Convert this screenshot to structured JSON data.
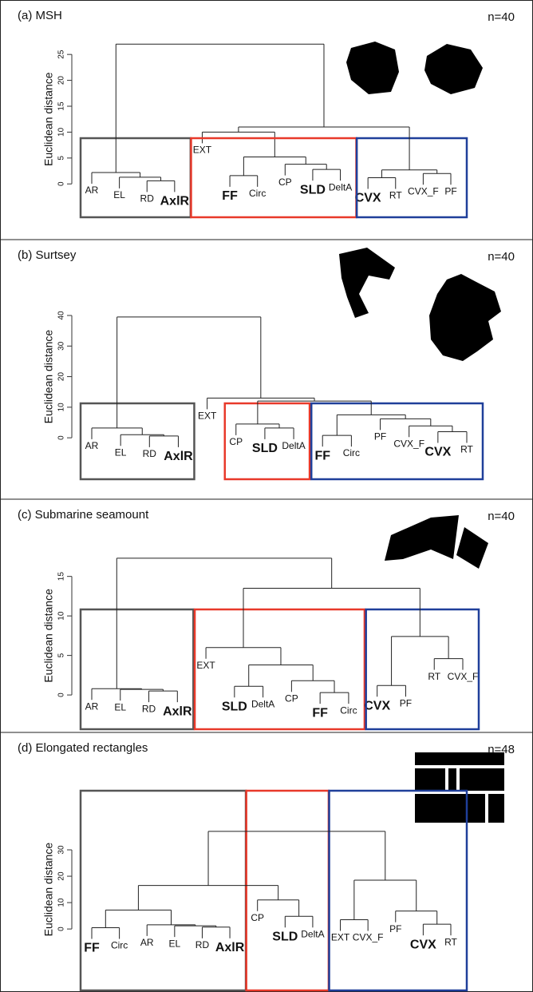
{
  "chart_data": [
    {
      "type": "dendrogram",
      "title": "(a) MSH",
      "annotation": "n=40",
      "y_label": "Euclidean distance",
      "ylim": [
        -1.5,
        27.8
      ],
      "yticks": [
        0,
        5,
        10,
        15,
        20,
        25
      ],
      "tree": {
        "height": 27,
        "children": [
          {
            "height": 2.2,
            "box": "#555555",
            "children": [
              {
                "label": "AR"
              },
              {
                "height": 1.3,
                "children": [
                  {
                    "label": "EL"
                  },
                  {
                    "height": 0.6,
                    "children": [
                      {
                        "label": "RD"
                      },
                      {
                        "label": "AxlR",
                        "bold": true
                      }
                    ]
                  }
                ]
              }
            ]
          },
          {
            "height": 11,
            "children": [
              {
                "height": 10,
                "box": "#e8392a",
                "children": [
                  {
                    "label": "EXT"
                  },
                  {
                    "height": 5.2,
                    "children": [
                      {
                        "height": 1.6,
                        "children": [
                          {
                            "label": "FF",
                            "bold": true
                          },
                          {
                            "label": "Circ"
                          }
                        ]
                      },
                      {
                        "height": 3.8,
                        "children": [
                          {
                            "label": "CP"
                          },
                          {
                            "height": 2.8,
                            "children": [
                              {
                                "label": "SLD",
                                "bold": true
                              },
                              {
                                "label": "DeltA"
                              }
                            ]
                          }
                        ]
                      }
                    ]
                  }
                ]
              },
              {
                "height": 2.7,
                "box": "#1f3f9a",
                "children": [
                  {
                    "height": 1.2,
                    "children": [
                      {
                        "label": "CVX",
                        "bold": true
                      },
                      {
                        "label": "RT"
                      }
                    ]
                  },
                  {
                    "height": 2.0,
                    "children": [
                      {
                        "label": "CVX_F"
                      },
                      {
                        "label": "PF"
                      }
                    ]
                  }
                ]
              }
            ]
          }
        ]
      }
    },
    {
      "type": "dendrogram",
      "title": "(b) Surtsey",
      "annotation": "n=40",
      "y_label": "Euclidean distance",
      "ylim": [
        -3.1,
        41.3
      ],
      "yticks": [
        0,
        10,
        20,
        30,
        40
      ],
      "tree": {
        "height": 39.5,
        "children": [
          {
            "height": 3.2,
            "box": "#555555",
            "children": [
              {
                "label": "AR"
              },
              {
                "height": 1.0,
                "children": [
                  {
                    "label": "EL"
                  },
                  {
                    "height": 0.6,
                    "children": [
                      {
                        "label": "RD"
                      },
                      {
                        "label": "AxlR",
                        "bold": true
                      }
                    ]
                  }
                ]
              }
            ]
          },
          {
            "height": 13,
            "children": [
              {
                "label": "EXT"
              },
              {
                "height": 12,
                "children": [
                  {
                    "height": 4.5,
                    "box": "#e8392a",
                    "children": [
                      {
                        "label": "CP"
                      },
                      {
                        "height": 3.2,
                        "children": [
                          {
                            "label": "SLD",
                            "bold": true
                          },
                          {
                            "label": "DeltA"
                          }
                        ]
                      }
                    ]
                  },
                  {
                    "height": 7.5,
                    "box": "#1f3f9a",
                    "children": [
                      {
                        "height": 0.8,
                        "children": [
                          {
                            "label": "FF",
                            "bold": true
                          },
                          {
                            "label": "Circ"
                          }
                        ]
                      },
                      {
                        "height": 6.2,
                        "children": [
                          {
                            "label": "PF"
                          },
                          {
                            "height": 3.9,
                            "children": [
                              {
                                "label": "CVX_F"
                              },
                              {
                                "height": 2.0,
                                "children": [
                                  {
                                    "label": "CVX",
                                    "bold": true
                                  },
                                  {
                                    "label": "RT"
                                  }
                                ]
                              }
                            ]
                          }
                        ]
                      }
                    ]
                  }
                ]
              }
            ]
          }
        ]
      }
    },
    {
      "type": "dendrogram",
      "title": "(c) Submarine seamount",
      "annotation": "n=40",
      "y_label": "Euclidean distance",
      "ylim": [
        -1.0,
        18.2
      ],
      "yticks": [
        0,
        5,
        10,
        15
      ],
      "tree": {
        "height": 17.3,
        "children": [
          {
            "height": 0.8,
            "box": "#555555",
            "children": [
              {
                "label": "AR"
              },
              {
                "height": 0.7,
                "children": [
                  {
                    "label": "EL"
                  },
                  {
                    "height": 0.5,
                    "children": [
                      {
                        "label": "RD"
                      },
                      {
                        "label": "AxlR",
                        "bold": true
                      }
                    ]
                  }
                ]
              }
            ]
          },
          {
            "height": 13.5,
            "children": [
              {
                "height": 6.0,
                "box": "#e8392a",
                "children": [
                  {
                    "label": "EXT"
                  },
                  {
                    "height": 3.8,
                    "children": [
                      {
                        "height": 1.1,
                        "children": [
                          {
                            "label": "SLD",
                            "bold": true
                          },
                          {
                            "label": "DeltA"
                          }
                        ]
                      },
                      {
                        "height": 1.8,
                        "children": [
                          {
                            "label": "CP"
                          },
                          {
                            "height": 0.3,
                            "children": [
                              {
                                "label": "FF",
                                "bold": true
                              },
                              {
                                "label": "Circ"
                              }
                            ]
                          }
                        ]
                      }
                    ]
                  }
                ]
              },
              {
                "height": 7.4,
                "box": "#1f3f9a",
                "children": [
                  {
                    "height": 1.2,
                    "children": [
                      {
                        "label": "CVX",
                        "bold": true
                      },
                      {
                        "label": "PF"
                      }
                    ]
                  },
                  {
                    "height": 4.6,
                    "children": [
                      {
                        "label": "RT"
                      },
                      {
                        "label": "CVX_F"
                      }
                    ]
                  }
                ]
              }
            ]
          }
        ]
      }
    },
    {
      "type": "dendrogram",
      "title": "(d) Elongated rectangles",
      "annotation": "n=48",
      "y_label": "Euclidean distance",
      "ylim": [
        -3.6,
        40.3
      ],
      "yticks": [
        0,
        10,
        20,
        30
      ],
      "tree": {
        "height": 37,
        "children": [
          {
            "height": 16.5,
            "children": [
              {
                "height": 7.2,
                "box": "#555555",
                "children": [
                  {
                    "height": 0.5,
                    "children": [
                      {
                        "label": "FF",
                        "bold": true
                      },
                      {
                        "label": "Circ"
                      }
                    ]
                  },
                  {
                    "height": 1.6,
                    "children": [
                      {
                        "label": "AR"
                      },
                      {
                        "height": 1.2,
                        "children": [
                          {
                            "label": "EL"
                          },
                          {
                            "height": 0.7,
                            "children": [
                              {
                                "label": "RD"
                              },
                              {
                                "label": "AxlR",
                                "bold": true
                              }
                            ]
                          }
                        ]
                      }
                    ]
                  }
                ]
              },
              {
                "height": 11,
                "box": "#e8392a",
                "children": [
                  {
                    "label": "CP"
                  },
                  {
                    "height": 4.8,
                    "children": [
                      {
                        "label": "SLD",
                        "bold": true
                      },
                      {
                        "label": "DeltA"
                      }
                    ]
                  }
                ]
              }
            ]
          },
          {
            "height": 18.5,
            "box": "#1f3f9a",
            "children": [
              {
                "height": 3.5,
                "children": [
                  {
                    "label": "EXT"
                  },
                  {
                    "label": "CVX_F"
                  }
                ]
              },
              {
                "height": 6.8,
                "children": [
                  {
                    "label": "PF"
                  },
                  {
                    "height": 1.8,
                    "children": [
                      {
                        "label": "CVX",
                        "bold": true
                      },
                      {
                        "label": "RT"
                      }
                    ]
                  }
                ]
              }
            ]
          }
        ]
      }
    }
  ]
}
